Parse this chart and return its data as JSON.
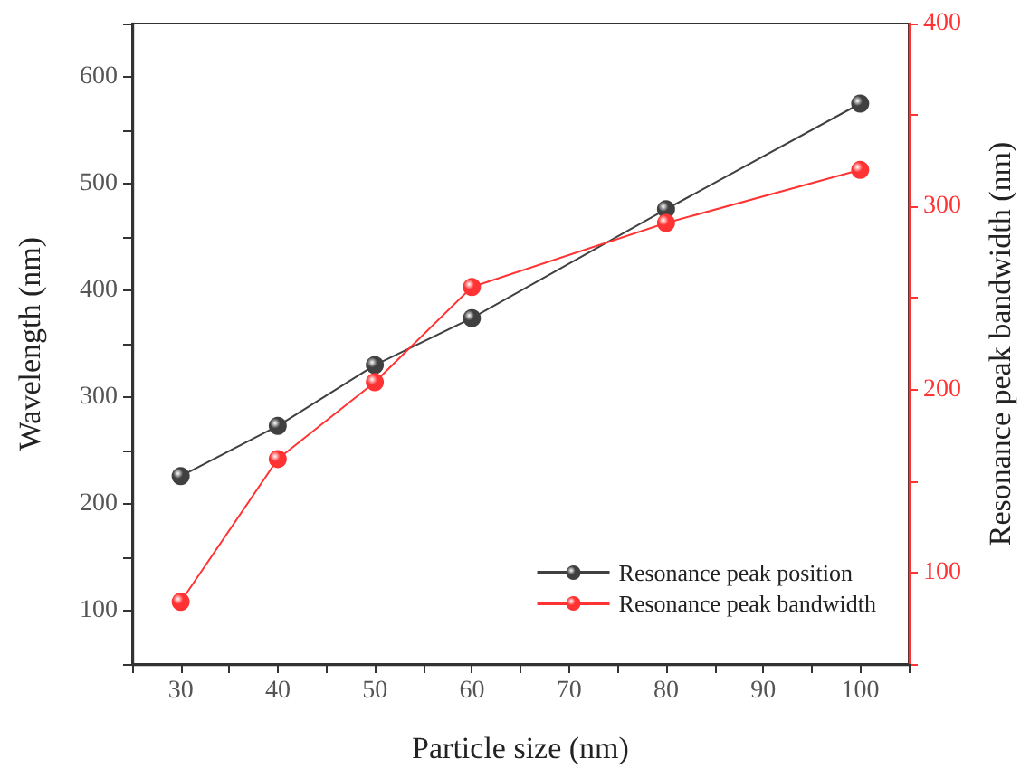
{
  "chart_data": {
    "type": "line",
    "xlabel": "Particle size (nm)",
    "ylabel": "Wavelength (nm)",
    "y2label": "Resonance peak bandwidth (nm)",
    "x": [
      30,
      40,
      50,
      60,
      80,
      100
    ],
    "series": [
      {
        "name": "Resonance peak position",
        "color": "#404040",
        "values": [
          226,
          273,
          330,
          374,
          476,
          575
        ]
      },
      {
        "name": "Resonance peak bandwidth",
        "color": "#ff3333",
        "axis": "y2",
        "values": [
          84,
          162,
          204,
          256,
          291,
          320
        ]
      }
    ],
    "xlim": [
      25,
      105
    ],
    "xticks": [
      {
        "value": 25,
        "label": null
      },
      30,
      {
        "value": 35,
        "label": null
      },
      40,
      {
        "value": 45,
        "label": null
      },
      50,
      {
        "value": 55,
        "label": null
      },
      60,
      {
        "value": 65,
        "label": null
      },
      70,
      {
        "value": 75,
        "label": null
      },
      80,
      {
        "value": 85,
        "label": null
      },
      90,
      {
        "value": 95,
        "label": null
      },
      100,
      {
        "value": 105,
        "label": null
      }
    ],
    "ylim": [
      50,
      650
    ],
    "yticks": [
      {
        "value": 50,
        "label": null
      },
      100,
      {
        "value": 150,
        "label": null
      },
      200,
      {
        "value": 250,
        "label": null
      },
      300,
      {
        "value": 350,
        "label": null
      },
      400,
      {
        "value": 450,
        "label": null
      },
      500,
      {
        "value": 550,
        "label": null
      },
      600,
      {
        "value": 650,
        "label": null
      }
    ],
    "y2lim": [
      50,
      400
    ],
    "y2ticks": [
      {
        "value": 50,
        "label": null
      },
      100,
      {
        "value": 150,
        "label": null
      },
      200,
      {
        "value": 250,
        "label": null
      },
      300,
      {
        "value": 350,
        "label": null
      },
      400
    ],
    "legend": "bottom right",
    "marker": "circle",
    "line_style": "solid",
    "grid": false
  }
}
